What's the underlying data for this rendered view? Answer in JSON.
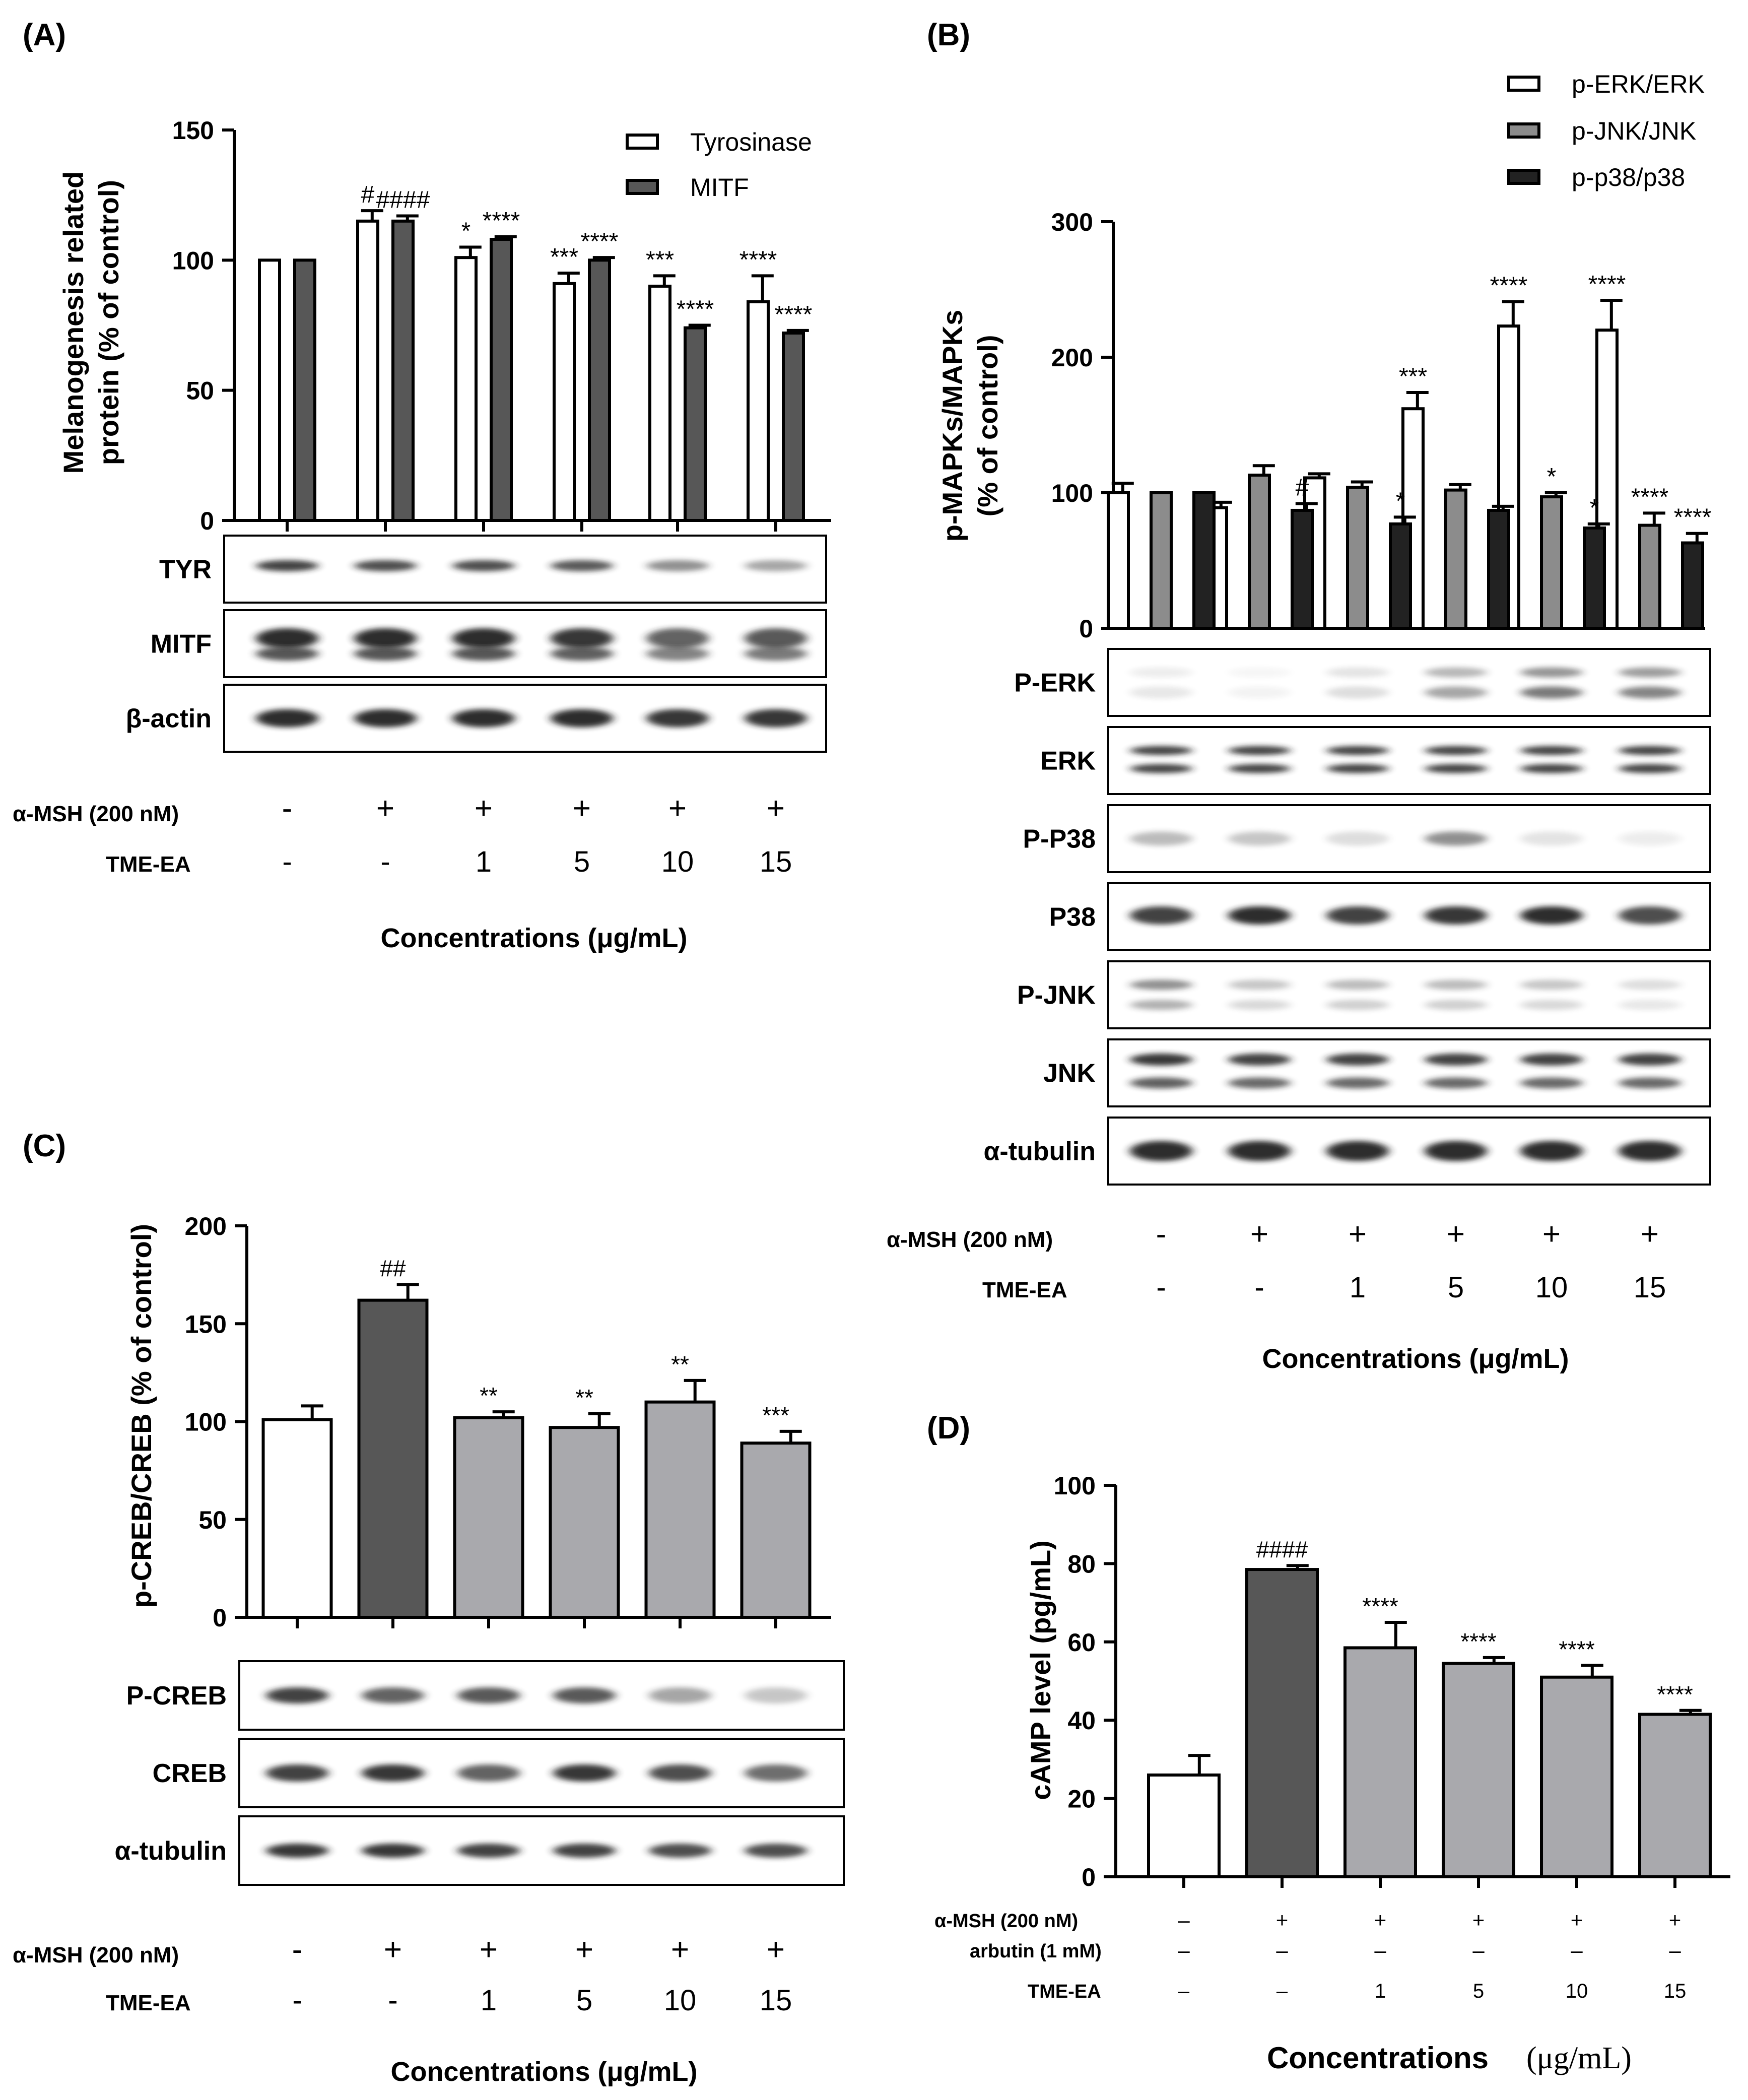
{
  "colors": {
    "white": "#ffffff",
    "dark_gray": "#575757",
    "mid_gray": "#8c8c8c",
    "light_gray": "#a9a9ad",
    "black": "#222222"
  },
  "panels": {
    "A": {
      "label": "(A)",
      "blots": [
        "TYR",
        "MITF",
        "β-actin"
      ]
    },
    "B": {
      "label": "(B)",
      "blots": [
        "P-ERK",
        "ERK",
        "P-P38",
        "P38",
        "P-JNK",
        "JNK",
        "α-tubulin"
      ]
    },
    "C": {
      "label": "(C)",
      "blots": [
        "P-CREB",
        "CREB",
        "α-tubulin"
      ]
    },
    "D": {
      "label": "(D)"
    }
  },
  "conditions": {
    "A": {
      "row1_label": "α-MSH (200 nM)",
      "row1": [
        "-",
        "+",
        "+",
        "+",
        "+",
        "+"
      ],
      "row2_label": "TME-EA",
      "row2": [
        "-",
        "-",
        "1",
        "5",
        "10",
        "15"
      ],
      "footer": "Concentrations (μg/mL)"
    },
    "B": {
      "row1_label": "α-MSH (200 nM)",
      "row1": [
        "-",
        "+",
        "+",
        "+",
        "+",
        "+"
      ],
      "row2_label": "TME-EA",
      "row2": [
        "-",
        "-",
        "1",
        "5",
        "10",
        "15"
      ],
      "footer": "Concentrations (μg/mL)"
    },
    "C": {
      "row1_label": "α-MSH (200 nM)",
      "row1": [
        "-",
        "+",
        "+",
        "+",
        "+",
        "+"
      ],
      "row2_label": "TME-EA",
      "row2": [
        "-",
        "-",
        "1",
        "5",
        "10",
        "15"
      ],
      "footer": "Concentrations (μg/mL)"
    },
    "D": {
      "row1_label": "α-MSH (200 nM)",
      "row1": [
        "–",
        "+",
        "+",
        "+",
        "+",
        "+"
      ],
      "row2_label": "arbutin (1 mM)",
      "row2": [
        "–",
        "–",
        "–",
        "–",
        "–",
        "–"
      ],
      "row3_label": "TME-EA",
      "row3": [
        "–",
        "–",
        "1",
        "5",
        "10",
        "15"
      ],
      "footer_a": "Concentrations",
      "footer_b": "(μg/mL)"
    }
  },
  "chart_data": [
    {
      "panel": "A",
      "type": "bar",
      "ylabel": [
        "Melanogenesis related",
        "protein (% of control)"
      ],
      "ylim": [
        0,
        150
      ],
      "yticks": [
        0,
        50,
        100,
        150
      ],
      "grid": false,
      "legend_position": "top-right",
      "categories": [
        "-/-",
        "+/-",
        "+/1",
        "+/5",
        "+/10",
        "+/15"
      ],
      "series": [
        {
          "name": "Tyrosinase",
          "values": [
            100,
            115,
            101,
            91,
            90,
            84
          ],
          "errors": [
            0,
            4,
            4,
            4,
            4,
            10
          ],
          "annotations": [
            "",
            "#",
            "*",
            "***",
            "***",
            "****"
          ],
          "fill": "#ffffff"
        },
        {
          "name": "MITF",
          "values": [
            100,
            115,
            108,
            100,
            74,
            72
          ],
          "errors": [
            0,
            2,
            1,
            1,
            1,
            1
          ],
          "annotations": [
            "",
            "####",
            "****",
            "****",
            "****",
            "****"
          ],
          "fill": "#575757"
        }
      ]
    },
    {
      "panel": "B",
      "type": "bar",
      "ylabel": [
        "p-MAPKs/MAPKs",
        "(% of control)"
      ],
      "ylim": [
        0,
        300
      ],
      "yticks": [
        0,
        100,
        200,
        300
      ],
      "grid": false,
      "legend_position": "top-right",
      "categories": [
        "-/-",
        "+/-",
        "+/1",
        "+/5",
        "+/10",
        "+/15"
      ],
      "series": [
        {
          "name": "p-ERK/ERK",
          "values": [
            100,
            89,
            111,
            162,
            223,
            220
          ],
          "errors": [
            7,
            4,
            3,
            12,
            18,
            22
          ],
          "annotations": [
            "",
            "",
            "",
            "***",
            "****",
            "****"
          ],
          "fill": "#ffffff"
        },
        {
          "name": "p-JNK/JNK",
          "values": [
            100,
            113,
            104,
            102,
            97,
            76
          ],
          "errors": [
            0,
            7,
            4,
            4,
            3,
            9
          ],
          "annotations": [
            "",
            "",
            "",
            "",
            "*",
            "****"
          ],
          "fill": "#8c8c8c"
        },
        {
          "name": "p-p38/p38",
          "values": [
            100,
            87,
            77,
            87,
            74,
            63
          ],
          "errors": [
            0,
            5,
            5,
            3,
            3,
            7
          ],
          "annotations": [
            "",
            "#",
            "*",
            "",
            "*",
            "****"
          ],
          "fill": "#222222"
        }
      ]
    },
    {
      "panel": "C",
      "type": "bar",
      "ylabel": [
        "p-CREB/CREB (% of control)"
      ],
      "ylim": [
        0,
        200
      ],
      "yticks": [
        0,
        50,
        100,
        150,
        200
      ],
      "grid": false,
      "categories": [
        "-/-",
        "+/-",
        "+/1",
        "+/5",
        "+/10",
        "+/15"
      ],
      "series": [
        {
          "name": "p-CREB/CREB",
          "values": [
            101,
            162,
            102,
            97,
            110,
            89
          ],
          "errors": [
            7,
            8,
            3,
            7,
            11,
            6
          ],
          "annotations": [
            "",
            "##",
            "**",
            "**",
            "**",
            "***"
          ],
          "fills": [
            "#ffffff",
            "#575757",
            "#a9a9ad",
            "#a9a9ad",
            "#a9a9ad",
            "#a9a9ad"
          ]
        }
      ]
    },
    {
      "panel": "D",
      "type": "bar",
      "ylabel": [
        "cAMP level (pg/mL)"
      ],
      "ylim": [
        0,
        100
      ],
      "yticks": [
        0,
        20,
        40,
        60,
        80,
        100
      ],
      "grid": false,
      "categories": [
        "-/-/-",
        "+/-/-",
        "+/-/1",
        "+/-/5",
        "+/-/10",
        "+/-/15"
      ],
      "series": [
        {
          "name": "cAMP",
          "values": [
            26,
            78.5,
            58.5,
            54.5,
            51,
            41.5
          ],
          "errors": [
            5,
            1,
            6.5,
            1.5,
            3,
            1
          ],
          "annotations": [
            "",
            "####",
            "****",
            "****",
            "****",
            "****"
          ],
          "fills": [
            "#ffffff",
            "#575757",
            "#a9a9ad",
            "#a9a9ad",
            "#a9a9ad",
            "#a9a9ad"
          ]
        }
      ]
    }
  ]
}
